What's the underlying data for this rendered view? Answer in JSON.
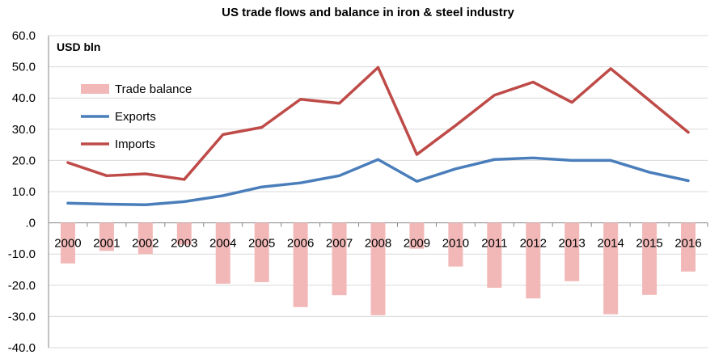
{
  "chart_data": {
    "type": "bar+line",
    "title": "US trade flows and balance in iron & steel industry",
    "unit_label": "USD bln",
    "categories": [
      "2000",
      "2001",
      "2002",
      "2003",
      "2004",
      "2005",
      "2006",
      "2007",
      "2008",
      "2009",
      "2010",
      "2011",
      "2012",
      "2013",
      "2014",
      "2015",
      "2016"
    ],
    "ylim": [
      -40,
      60
    ],
    "yticks": [
      {
        "value": 60,
        "label": "60.0"
      },
      {
        "value": 50,
        "label": "50.0"
      },
      {
        "value": 40,
        "label": "40.0"
      },
      {
        "value": 30,
        "label": "30.0"
      },
      {
        "value": 20,
        "label": "20.0"
      },
      {
        "value": 10,
        "label": "10.0"
      },
      {
        "value": 0,
        "label": ".0"
      },
      {
        "value": -10,
        "label": "-10.0"
      },
      {
        "value": -20,
        "label": "-20.0"
      },
      {
        "value": -30,
        "label": "-30.0"
      },
      {
        "value": -40,
        "label": "-40.0"
      }
    ],
    "grid": true,
    "legend_position": "top-left",
    "series": [
      {
        "name": "Trade balance",
        "kind": "bar",
        "color": "#f2b8b8",
        "values": [
          -13.0,
          -9.0,
          -10.0,
          -7.0,
          -19.5,
          -19.0,
          -27.0,
          -23.2,
          -29.6,
          -8.3,
          -14.0,
          -20.8,
          -24.2,
          -18.7,
          -29.3,
          -23.1,
          -15.6
        ]
      },
      {
        "name": "Exports",
        "kind": "line",
        "color": "#4a7ebb",
        "values": [
          6.3,
          6.0,
          5.8,
          6.8,
          8.7,
          11.5,
          12.8,
          15.1,
          20.3,
          13.3,
          17.3,
          20.3,
          20.8,
          20.0,
          20.0,
          16.2,
          13.5
        ]
      },
      {
        "name": "Imports",
        "kind": "line",
        "color": "#be4b48",
        "values": [
          19.3,
          15.1,
          15.7,
          13.9,
          28.3,
          30.6,
          39.6,
          38.3,
          49.8,
          21.9,
          31.2,
          40.9,
          45.1,
          38.6,
          49.4,
          39.2,
          29.0
        ]
      }
    ]
  }
}
